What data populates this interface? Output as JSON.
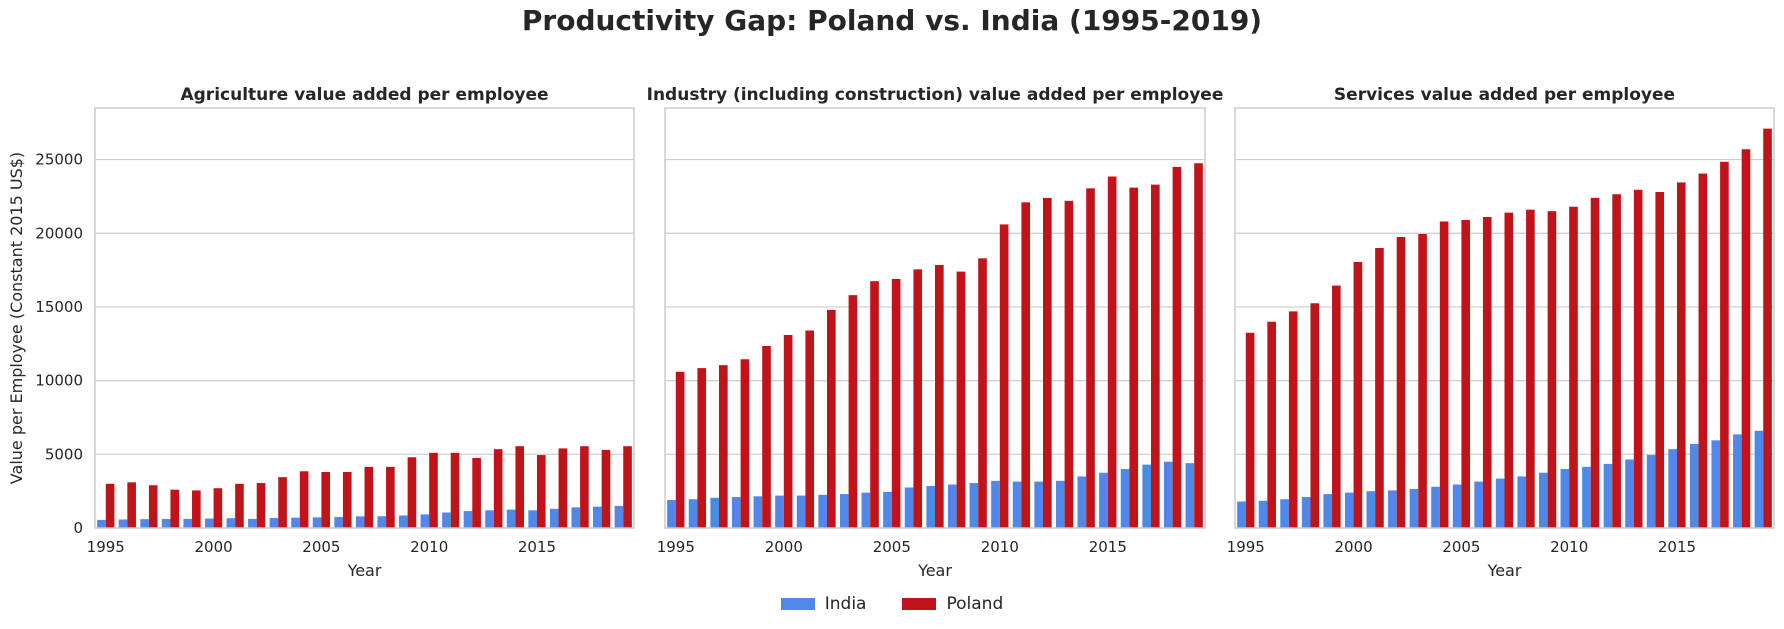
{
  "suptitle": "Productivity Gap: Poland vs. India (1995-2019)",
  "colors": {
    "India": "#4f88e8",
    "Poland": "#c0141a"
  },
  "legend": [
    "India",
    "Poland"
  ],
  "chart_data": [
    {
      "type": "bar",
      "title": "Agriculture value added per employee",
      "xlabel": "Year",
      "ylabel": "Value per Employee (Constant 2015 US$)",
      "ylim": [
        0,
        28500
      ],
      "yticks": [
        0,
        5000,
        10000,
        15000,
        20000,
        25000
      ],
      "xticks": [
        1995,
        2000,
        2005,
        2010,
        2015
      ],
      "categories": [
        1995,
        1996,
        1997,
        1998,
        1999,
        2000,
        2001,
        2002,
        2003,
        2004,
        2005,
        2006,
        2007,
        2008,
        2009,
        2010,
        2011,
        2012,
        2013,
        2014,
        2015,
        2016,
        2017,
        2018,
        2019
      ],
      "series": [
        {
          "name": "India",
          "values": [
            550,
            580,
            600,
            610,
            620,
            640,
            660,
            620,
            680,
            700,
            720,
            750,
            790,
            800,
            850,
            920,
            1050,
            1150,
            1200,
            1250,
            1200,
            1300,
            1400,
            1450,
            1500
          ]
        },
        {
          "name": "Poland",
          "values": [
            3000,
            3100,
            2900,
            2600,
            2550,
            2700,
            3000,
            3050,
            3450,
            3850,
            3800,
            3800,
            4150,
            4150,
            4800,
            5100,
            5100,
            4750,
            5350,
            5550,
            4950,
            5400,
            5550,
            5300,
            5550
          ]
        }
      ]
    },
    {
      "type": "bar",
      "title": "Industry (including construction) value added per employee",
      "xlabel": "Year",
      "ylabel": "",
      "ylim": [
        0,
        28500
      ],
      "yticks": [
        0,
        5000,
        10000,
        15000,
        20000,
        25000
      ],
      "xticks": [
        1995,
        2000,
        2005,
        2010,
        2015
      ],
      "categories": [
        1995,
        1996,
        1997,
        1998,
        1999,
        2000,
        2001,
        2002,
        2003,
        2004,
        2005,
        2006,
        2007,
        2008,
        2009,
        2010,
        2011,
        2012,
        2013,
        2014,
        2015,
        2016,
        2017,
        2018,
        2019
      ],
      "series": [
        {
          "name": "India",
          "values": [
            1900,
            1950,
            2050,
            2100,
            2150,
            2200,
            2200,
            2250,
            2300,
            2400,
            2450,
            2750,
            2850,
            2950,
            3050,
            3200,
            3150,
            3150,
            3200,
            3500,
            3750,
            4000,
            4300,
            4500,
            4400
          ]
        },
        {
          "name": "Poland",
          "values": [
            10600,
            10850,
            11050,
            11450,
            12350,
            13100,
            13400,
            14800,
            15800,
            16750,
            16900,
            17550,
            17850,
            17400,
            18300,
            20600,
            22100,
            22400,
            22200,
            23050,
            23850,
            23100,
            23300,
            24500,
            24750
          ]
        }
      ]
    },
    {
      "type": "bar",
      "title": "Services value added per employee",
      "xlabel": "Year",
      "ylabel": "",
      "ylim": [
        0,
        28500
      ],
      "yticks": [
        0,
        5000,
        10000,
        15000,
        20000,
        25000
      ],
      "xticks": [
        1995,
        2000,
        2005,
        2010,
        2015
      ],
      "categories": [
        1995,
        1996,
        1997,
        1998,
        1999,
        2000,
        2001,
        2002,
        2003,
        2004,
        2005,
        2006,
        2007,
        2008,
        2009,
        2010,
        2011,
        2012,
        2013,
        2014,
        2015,
        2016,
        2017,
        2018,
        2019
      ],
      "series": [
        {
          "name": "India",
          "values": [
            1800,
            1850,
            1950,
            2100,
            2300,
            2400,
            2500,
            2550,
            2650,
            2800,
            2950,
            3150,
            3350,
            3500,
            3750,
            4000,
            4150,
            4350,
            4650,
            4950,
            5350,
            5700,
            5950,
            6350,
            6600
          ]
        },
        {
          "name": "Poland",
          "values": [
            13250,
            14000,
            14700,
            15250,
            16450,
            18050,
            19000,
            19750,
            19950,
            20800,
            20900,
            21100,
            21400,
            21600,
            21500,
            21800,
            22400,
            22650,
            22950,
            22800,
            23450,
            24050,
            24850,
            25700,
            27100
          ]
        }
      ]
    }
  ]
}
